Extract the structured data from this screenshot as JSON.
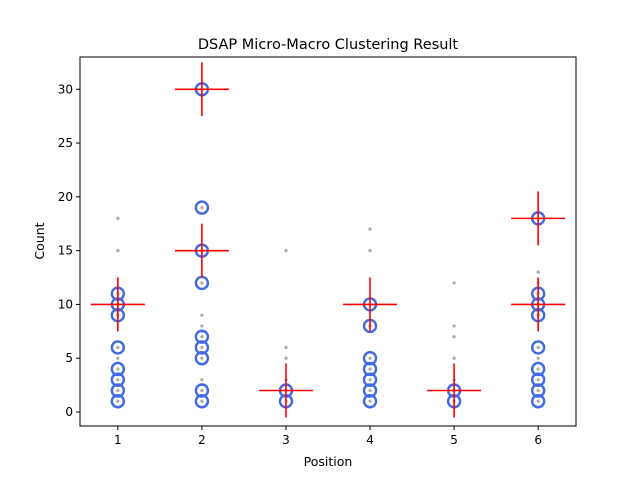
{
  "chart_data": {
    "type": "scatter",
    "title": "DSAP Micro-Macro Clustering Result",
    "xlabel": "Position",
    "ylabel": "Count",
    "xlim": [
      0.55,
      6.45
    ],
    "ylim": [
      -1.3,
      33
    ],
    "xticks": [
      1,
      2,
      3,
      4,
      5,
      6
    ],
    "yticks": [
      0,
      5,
      10,
      15,
      20,
      25,
      30
    ],
    "grid": false,
    "colors": {
      "points": "#aaaaaa",
      "micro": "#4169e1",
      "macro": "#ff0000"
    },
    "series": [
      {
        "values": [
          [
            1,
            1
          ],
          [
            1,
            1.5
          ],
          [
            1,
            2
          ],
          [
            1,
            2.5
          ],
          [
            1,
            3
          ],
          [
            1,
            3.5
          ],
          [
            1,
            4
          ],
          [
            1,
            5
          ],
          [
            1,
            6
          ],
          [
            1,
            9
          ],
          [
            1,
            10
          ],
          [
            1,
            11
          ],
          [
            1,
            15
          ],
          [
            1,
            18
          ],
          [
            2,
            1
          ],
          [
            2,
            2
          ],
          [
            2,
            3
          ],
          [
            2,
            5
          ],
          [
            2,
            5.5
          ],
          [
            2,
            6
          ],
          [
            2,
            6.5
          ],
          [
            2,
            7
          ],
          [
            2,
            7.5
          ],
          [
            2,
            8
          ],
          [
            2,
            9
          ],
          [
            2,
            12
          ],
          [
            2,
            15
          ],
          [
            2,
            19
          ],
          [
            2,
            30
          ],
          [
            3,
            1
          ],
          [
            3,
            1.5
          ],
          [
            3,
            2
          ],
          [
            3,
            2.5
          ],
          [
            3,
            3
          ],
          [
            3,
            5
          ],
          [
            3,
            6
          ],
          [
            3,
            15
          ],
          [
            4,
            1
          ],
          [
            4,
            1.5
          ],
          [
            4,
            2
          ],
          [
            4,
            2.5
          ],
          [
            4,
            3
          ],
          [
            4,
            3.5
          ],
          [
            4,
            4
          ],
          [
            4,
            5
          ],
          [
            4,
            8
          ],
          [
            4,
            10
          ],
          [
            4,
            15
          ],
          [
            4,
            17
          ],
          [
            5,
            1
          ],
          [
            5,
            1.5
          ],
          [
            5,
            2
          ],
          [
            5,
            2.5
          ],
          [
            5,
            3
          ],
          [
            5,
            5
          ],
          [
            5,
            7
          ],
          [
            5,
            8
          ],
          [
            5,
            12
          ],
          [
            6,
            1
          ],
          [
            6,
            1.5
          ],
          [
            6,
            2
          ],
          [
            6,
            2.5
          ],
          [
            6,
            3
          ],
          [
            6,
            3.5
          ],
          [
            6,
            4
          ],
          [
            6,
            5
          ],
          [
            6,
            6
          ],
          [
            6,
            9
          ],
          [
            6,
            10
          ],
          [
            6,
            11
          ],
          [
            6,
            12
          ],
          [
            6,
            13
          ],
          [
            6,
            18
          ]
        ]
      },
      {
        "values": [
          [
            1,
            1
          ],
          [
            1,
            2
          ],
          [
            1,
            3
          ],
          [
            1,
            4
          ],
          [
            1,
            6
          ],
          [
            1,
            9
          ],
          [
            1,
            10
          ],
          [
            1,
            11
          ],
          [
            2,
            1
          ],
          [
            2,
            2
          ],
          [
            2,
            5
          ],
          [
            2,
            6
          ],
          [
            2,
            7
          ],
          [
            2,
            12
          ],
          [
            2,
            15
          ],
          [
            2,
            19
          ],
          [
            2,
            30
          ],
          [
            3,
            1
          ],
          [
            3,
            2
          ],
          [
            4,
            1
          ],
          [
            4,
            2
          ],
          [
            4,
            3
          ],
          [
            4,
            4
          ],
          [
            4,
            5
          ],
          [
            4,
            8
          ],
          [
            4,
            10
          ],
          [
            5,
            1
          ],
          [
            5,
            2
          ],
          [
            6,
            1
          ],
          [
            6,
            2
          ],
          [
            6,
            3
          ],
          [
            6,
            4
          ],
          [
            6,
            6
          ],
          [
            6,
            9
          ],
          [
            6,
            10
          ],
          [
            6,
            11
          ],
          [
            6,
            18
          ]
        ]
      },
      {
        "values": [
          [
            1,
            10
          ],
          [
            2,
            30
          ],
          [
            2,
            15
          ],
          [
            3,
            2
          ],
          [
            4,
            10
          ],
          [
            5,
            2
          ],
          [
            6,
            18
          ],
          [
            6,
            10
          ]
        ]
      }
    ]
  }
}
